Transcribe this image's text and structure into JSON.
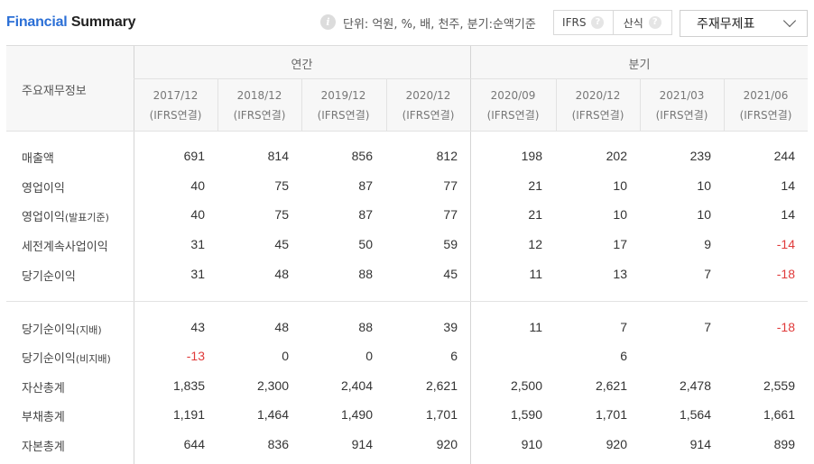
{
  "header": {
    "title_part1": "Financial",
    "title_part2": "Summary",
    "unit_info": "단위: 억원, %, 배, 천주, 분기:순액기준",
    "tab_ifrs": "IFRS",
    "tab_sansik": "산식",
    "help_glyph": "?",
    "info_glyph": "i",
    "report_select": "주재무제표"
  },
  "table": {
    "row_header": "주요재무정보",
    "group_annual": "연간",
    "group_quarter": "분기",
    "columns": [
      {
        "period": "2017/12",
        "basis": "(IFRS연결)"
      },
      {
        "period": "2018/12",
        "basis": "(IFRS연결)"
      },
      {
        "period": "2019/12",
        "basis": "(IFRS연결)"
      },
      {
        "period": "2020/12",
        "basis": "(IFRS연결)"
      },
      {
        "period": "2020/09",
        "basis": "(IFRS연결)"
      },
      {
        "period": "2020/12",
        "basis": "(IFRS연결)"
      },
      {
        "period": "2021/03",
        "basis": "(IFRS연결)"
      },
      {
        "period": "2021/06",
        "basis": "(IFRS연결)"
      }
    ],
    "rows": [
      {
        "label": "매출액",
        "sub": "",
        "values": [
          "691",
          "814",
          "856",
          "812",
          "198",
          "202",
          "239",
          "244"
        ]
      },
      {
        "label": "영업이익",
        "sub": "",
        "values": [
          "40",
          "75",
          "87",
          "77",
          "21",
          "10",
          "10",
          "14"
        ]
      },
      {
        "label": "영업이익",
        "sub": "(발표기준)",
        "values": [
          "40",
          "75",
          "87",
          "77",
          "21",
          "10",
          "10",
          "14"
        ]
      },
      {
        "label": "세전계속사업이익",
        "sub": "",
        "values": [
          "31",
          "45",
          "50",
          "59",
          "12",
          "17",
          "9",
          "-14"
        ]
      },
      {
        "label": "당기순이익",
        "sub": "",
        "values": [
          "31",
          "48",
          "88",
          "45",
          "11",
          "13",
          "7",
          "-18"
        ]
      },
      {
        "label": "당기순이익",
        "sub": "(지배)",
        "values": [
          "43",
          "48",
          "88",
          "39",
          "11",
          "7",
          "7",
          "-18"
        ]
      },
      {
        "label": "당기순이익",
        "sub": "(비지배)",
        "values": [
          "-13",
          "0",
          "0",
          "6",
          "",
          "6",
          "",
          ""
        ]
      },
      {
        "label": "자산총계",
        "sub": "",
        "values": [
          "1,835",
          "2,300",
          "2,404",
          "2,621",
          "2,500",
          "2,621",
          "2,478",
          "2,559"
        ]
      },
      {
        "label": "부채총계",
        "sub": "",
        "values": [
          "1,191",
          "1,464",
          "1,490",
          "1,701",
          "1,590",
          "1,701",
          "1,564",
          "1,661"
        ]
      },
      {
        "label": "자본총계",
        "sub": "",
        "values": [
          "644",
          "836",
          "914",
          "920",
          "910",
          "920",
          "914",
          "899"
        ]
      }
    ]
  },
  "colors": {
    "accent": "#2b6fd6",
    "negative": "#e03a3a"
  }
}
